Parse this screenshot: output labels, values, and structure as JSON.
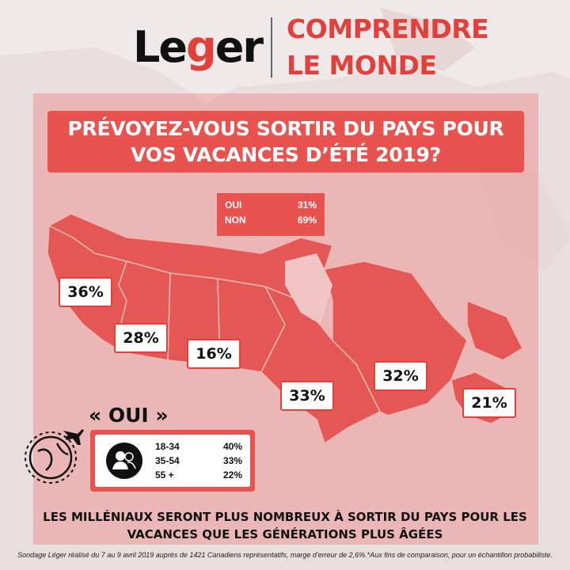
{
  "brand": {
    "logo_text_1": "Le",
    "logo_text_g": "g",
    "logo_text_2": "er",
    "tagline_line1": "COMPRENDRE",
    "tagline_line2": "LE MONDE"
  },
  "colors": {
    "accent": "#e3403c",
    "panel_red": "#e8534f",
    "map_fill": "#e55754",
    "background": "#efe9e9"
  },
  "question": {
    "line1": "PRÉVOYEZ-VOUS SORTIR DU PAYS POUR",
    "line2": "VOS VACANCES D’ÉTÉ 2019?"
  },
  "overall": [
    {
      "label": "OUI",
      "value": "31%"
    },
    {
      "label": "NON",
      "value": "69%"
    }
  ],
  "regions": [
    {
      "value": "36%"
    },
    {
      "value": "28%"
    },
    {
      "value": "16%"
    },
    {
      "value": "33%"
    },
    {
      "value": "32%"
    },
    {
      "value": "21%"
    }
  ],
  "oui_section": {
    "title": "« OUI »",
    "icon": "users-icon",
    "ages": [
      {
        "range": "18-34",
        "value": "40%"
      },
      {
        "range": "35-54",
        "value": "33%"
      },
      {
        "range": "55 +",
        "value": "22%"
      }
    ]
  },
  "conclusion": {
    "line1": "LES MILLÉNIAUX SERONT PLUS NOMBREUX À SORTIR DU PAYS POUR LES",
    "line2": "VACANCES QUE LES GÉNÉRATIONS PLUS ÂGÉES"
  },
  "source": "Sondage Léger réalisé du 7 au 9 avril 2019 auprès de 1421 Canadiens représentatifs, marge d'erreur de 2,6%.*Aux fins de comparaison, pour un échantillon probabiliste."
}
